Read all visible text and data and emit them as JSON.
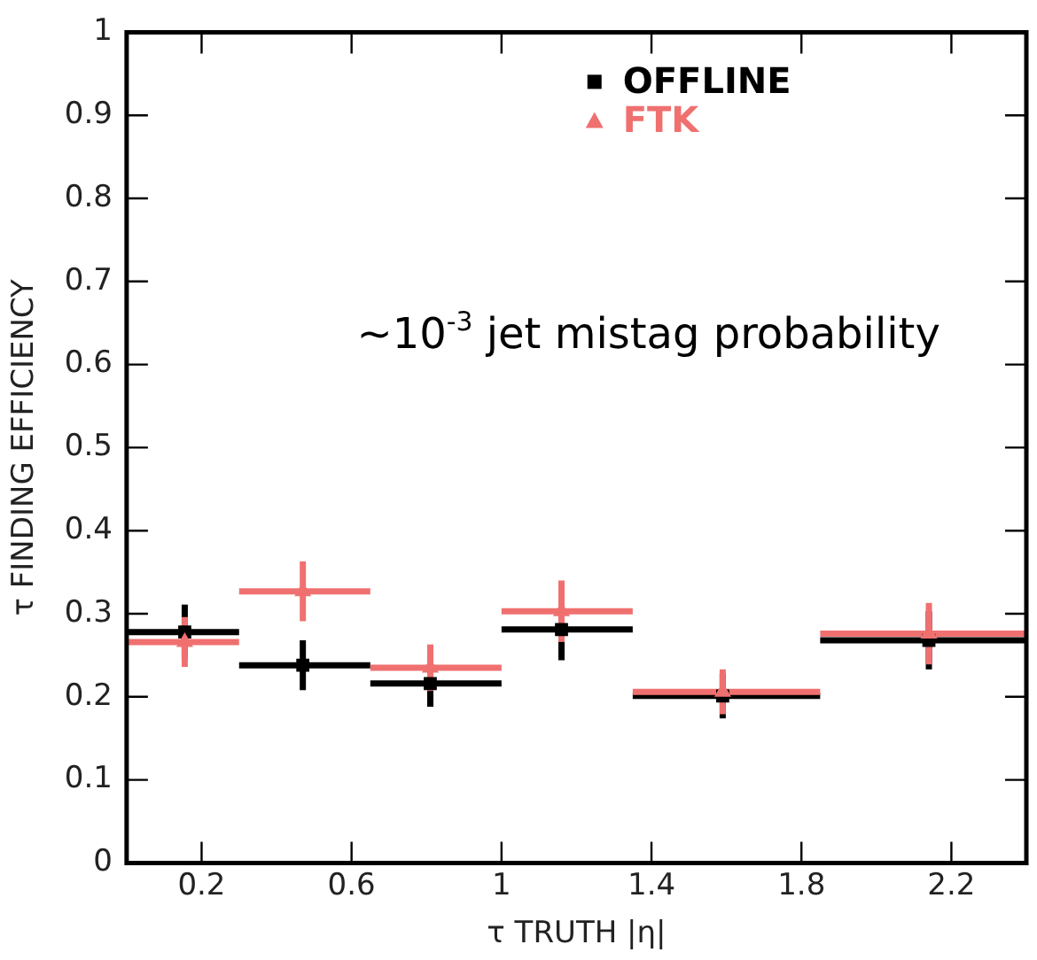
{
  "chart_data": {
    "type": "scatter",
    "xlabel": "τ TRUTH |η|",
    "ylabel": "τ FINDING EFFICIENCY",
    "xlim": [
      0,
      2.4
    ],
    "xticks": [
      0.2,
      0.6,
      1,
      1.4,
      1.8,
      2.2
    ],
    "ylim": [
      0,
      1
    ],
    "yticks": [
      0,
      0.1,
      0.2,
      0.3,
      0.4,
      0.5,
      0.6,
      0.7,
      0.8,
      0.9,
      1
    ],
    "grid": false,
    "legend": "top right",
    "annotations": [
      "~10$^{-3}$ jet mistag probability"
    ],
    "series": [
      {
        "name": "OFFLINE",
        "color": "#000000",
        "marker": "square",
        "x": [
          0.155,
          0.47,
          0.81,
          1.16,
          1.59,
          2.14
        ],
        "values": [
          0.278,
          0.238,
          0.216,
          0.281,
          0.201,
          0.268
        ],
        "errors": [
          0.033,
          0.03,
          0.028,
          0.037,
          0.027,
          0.035
        ],
        "xerrors": [
          [
            0,
            0.3
          ],
          [
            0.3,
            0.65
          ],
          [
            0.65,
            1.0
          ],
          [
            1.0,
            1.35
          ],
          [
            1.35,
            1.85
          ],
          [
            1.85,
            2.4
          ]
        ]
      },
      {
        "name": "FTK",
        "color": "#f07070",
        "marker": "triangle",
        "x": [
          0.155,
          0.47,
          0.81,
          1.16,
          1.59,
          2.14
        ],
        "values": [
          0.266,
          0.327,
          0.235,
          0.303,
          0.206,
          0.276
        ],
        "errors": [
          0.03,
          0.036,
          0.028,
          0.037,
          0.027,
          0.037
        ],
        "xerrors": [
          [
            0,
            0.3
          ],
          [
            0.3,
            0.65
          ],
          [
            0.65,
            1.0
          ],
          [
            1.0,
            1.35
          ],
          [
            1.35,
            1.85
          ],
          [
            1.85,
            2.4
          ]
        ]
      }
    ]
  }
}
